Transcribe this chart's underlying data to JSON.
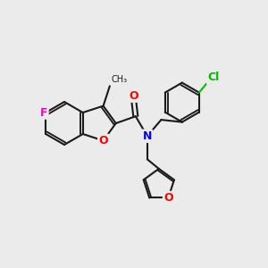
{
  "bg_color": "#ebebeb",
  "bond_color": "#1a1a1a",
  "lw": 1.5,
  "atom_colors": {
    "F": "#ff00cc",
    "Cl": "#00bb00",
    "O": "#ff0000",
    "N": "#0000ff"
  },
  "font_size": 9,
  "font_size_small": 8
}
